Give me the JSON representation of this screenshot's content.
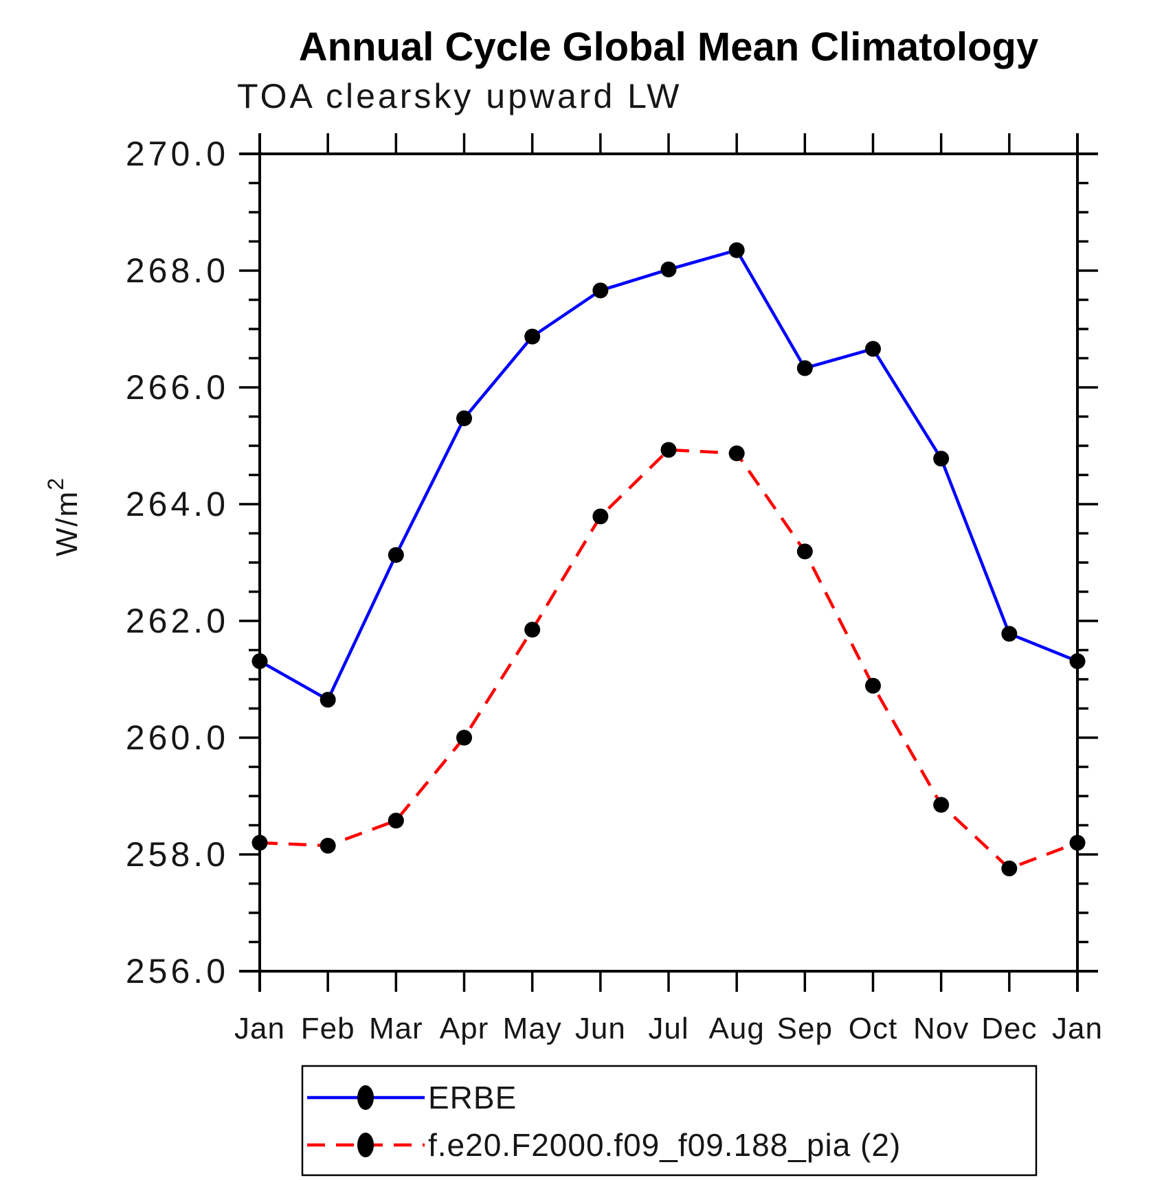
{
  "chart_data": {
    "type": "line",
    "title": "Annual Cycle Global Mean Climatology",
    "subtitle": "TOA clearsky upward LW",
    "ylabel_base": "W/m",
    "ylabel_exp": "2",
    "x_categories": [
      "Jan",
      "Feb",
      "Mar",
      "Apr",
      "May",
      "Jun",
      "Jul",
      "Aug",
      "Sep",
      "Oct",
      "Nov",
      "Dec",
      "Jan"
    ],
    "ylim": [
      256.0,
      270.0
    ],
    "ytick_major_interval": 2.0,
    "ytick_minor_interval": 0.5,
    "ytick_labels": [
      "256.0",
      "258.0",
      "260.0",
      "262.0",
      "264.0",
      "266.0",
      "268.0",
      "270.0"
    ],
    "grid": "off",
    "legend_position": "bottom-left-box",
    "series": [
      {
        "name": "ERBE",
        "line_style": "solid",
        "color": "#0000ff",
        "marker": "filled-circle",
        "marker_color": "#000000",
        "values": [
          261.31,
          260.65,
          263.13,
          265.47,
          266.87,
          267.66,
          268.02,
          268.35,
          266.33,
          266.66,
          264.78,
          261.78,
          261.31
        ]
      },
      {
        "name": "f.e20.F2000.f09_f09.188_pia (2)",
        "line_style": "dashed",
        "color": "#ff0000",
        "marker": "filled-circle",
        "marker_color": "#000000",
        "values": [
          258.2,
          258.15,
          258.58,
          260.0,
          261.85,
          263.79,
          264.93,
          264.87,
          263.19,
          260.89,
          258.85,
          257.76,
          258.2
        ]
      }
    ]
  },
  "colors": {
    "axis": "#000000",
    "background": "#ffffff",
    "erbe_line": "#0000ff",
    "model_line": "#ff0000",
    "marker": "#000000"
  }
}
